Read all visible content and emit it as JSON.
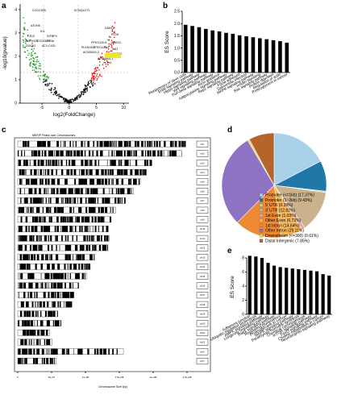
{
  "panels": {
    "a": "a",
    "b": "b",
    "c": "c",
    "d": "d",
    "e": "e"
  },
  "chart_data": [
    {
      "panel": "a",
      "type": "scatter",
      "xlabel": "log2(FoldChange)",
      "ylabel": "-log10(pvalue)",
      "xticks": [
        "-5",
        "0",
        "5",
        "10"
      ],
      "yticks": [
        "0",
        "1",
        "2",
        "3",
        "4"
      ],
      "xlim": [
        -9,
        11
      ],
      "ylim": [
        0,
        4.2
      ],
      "highlight_color": "#f2e330",
      "series_colors": {
        "down": "#2e9a2e",
        "up": "#e01818",
        "ns": "#111111"
      },
      "labels_down": [
        "CCDC30B",
        "ATOH8",
        "IC1",
        "FZD2",
        "IGFBP4",
        "INSYN2B",
        "CCDC173",
        "LRP4a",
        "DOCK2",
        "AC1",
        "C4S1"
      ],
      "labels_up": [
        "KCNQ1OT1",
        "DANT2",
        "PLD6",
        "FP671120.8",
        "AREG2",
        "PLEKHG6",
        "FP671120.7",
        "AC005001.2",
        "TH11",
        "CRISP3",
        "AP005801.1",
        "GPX3"
      ]
    },
    {
      "panel": "b",
      "type": "bar",
      "ylabel": "ES Score",
      "ylim": [
        0,
        2.5
      ],
      "yticks": [
        "0.0",
        "0.5",
        "1.0",
        "1.5",
        "2.0",
        "2.5"
      ],
      "categories": [
        "Pluripotency of stem cells",
        "ErbB signaling pathway",
        "Hippo signaling pathway",
        "Wnt signaling pathway",
        "TGF-beta signaling pathway",
        "Axon guidance",
        "Adipocytokine signaling pathway",
        "Rap1 signaling pathway",
        "Focal adhesion",
        "Salmonella infection",
        "MAPK signaling pathway",
        "Insulin signaling",
        "Ras signaling pathway",
        "Protein digestion",
        "Regulation of actin",
        "Proteoglycans in cancer"
      ],
      "values": [
        1.95,
        1.9,
        1.85,
        1.78,
        1.72,
        1.68,
        1.62,
        1.58,
        1.52,
        1.48,
        1.44,
        1.4,
        1.36,
        1.32,
        1.28,
        1.22
      ]
    },
    {
      "panel": "c",
      "type": "heatmap",
      "title": "MERIP Peaks over Chromosomes",
      "xlabel": "Chromosome Size (bp)",
      "xticks": [
        "0",
        "5e+07",
        "1e+08",
        "1.5e+08",
        "2e+08",
        "2.5e+08"
      ],
      "legend_entries": [
        "chr1",
        "chr2",
        "chr3",
        "chr4",
        "chr5",
        "chr6",
        "chr7",
        "chr8",
        "chr9",
        "chr10",
        "chr11",
        "chr12",
        "chr13",
        "chr14",
        "chr15",
        "chr16",
        "chr17",
        "chr18",
        "chr19",
        "chr20",
        "chr21",
        "chr22",
        "chrX",
        "chrY"
      ],
      "chrom_lengths": [
        248,
        242,
        198,
        190,
        181,
        171,
        159,
        145,
        138,
        134,
        135,
        133,
        114,
        107,
        102,
        90,
        83,
        80,
        59,
        64,
        47,
        51,
        156,
        57
      ]
    },
    {
      "panel": "d",
      "type": "pie",
      "categories": [
        "Promoter (<=1kb) (17.37%)",
        "Promoter (1~2kb) (9.43%)",
        "5' UTR (0.39%)",
        "3' UTR (12.82%)",
        "1st Exon (1.03%)",
        "Other Exon (6.73%)",
        "1st Intron (14.64%)",
        "Other Intron (29.11%)",
        "Downstream (<=300) (0.61%)",
        "Distal Intergenic (7.85%)"
      ],
      "values": [
        17.37,
        9.43,
        0.39,
        12.82,
        1.03,
        6.73,
        14.64,
        29.11,
        0.61,
        7.85
      ],
      "colors": [
        "#aed6ec",
        "#1f78a8",
        "#a8dca8",
        "#2f9a3c",
        "#f4a7a7",
        "#e8333a",
        "#f6b46a",
        "#f08a24",
        "#c8b0d8",
        "#6a3d9a"
      ],
      "drawn_colors": [
        "#a9d1ea",
        "#1f78a8",
        "#a8d8a8",
        "#c9b28c",
        "#e9a6a6",
        "#f6b75a",
        "#ee8a34",
        "#8e72c4",
        "#e6d25a",
        "#b5652c"
      ]
    },
    {
      "panel": "e",
      "type": "bar",
      "ylabel": "ES Score",
      "ylim": [
        0,
        8
      ],
      "yticks": [
        "0",
        "2",
        "4",
        "6",
        "8"
      ],
      "categories": [
        "Adherens junction",
        "Ubiquitin mediated proteolysis",
        "AMPK signaling pathway",
        "Longevity regulating pathway",
        "Rap1 signaling pathway",
        "Regulating pluripotency",
        "Proteoglycans in cancer",
        "MAPK signaling pathway",
        "Parathyroid hormone synthesis",
        "Chemical carcinogenesis",
        "mTOR signaling pathway",
        "FoxO signaling pathway",
        "Choline metabolism in cancer",
        "Neurotrophin signaling pathway"
      ],
      "values": [
        8.3,
        8.2,
        8.0,
        7.3,
        6.9,
        6.7,
        6.6,
        6.5,
        6.4,
        6.3,
        6.2,
        6.1,
        5.7,
        5.5
      ]
    }
  ]
}
